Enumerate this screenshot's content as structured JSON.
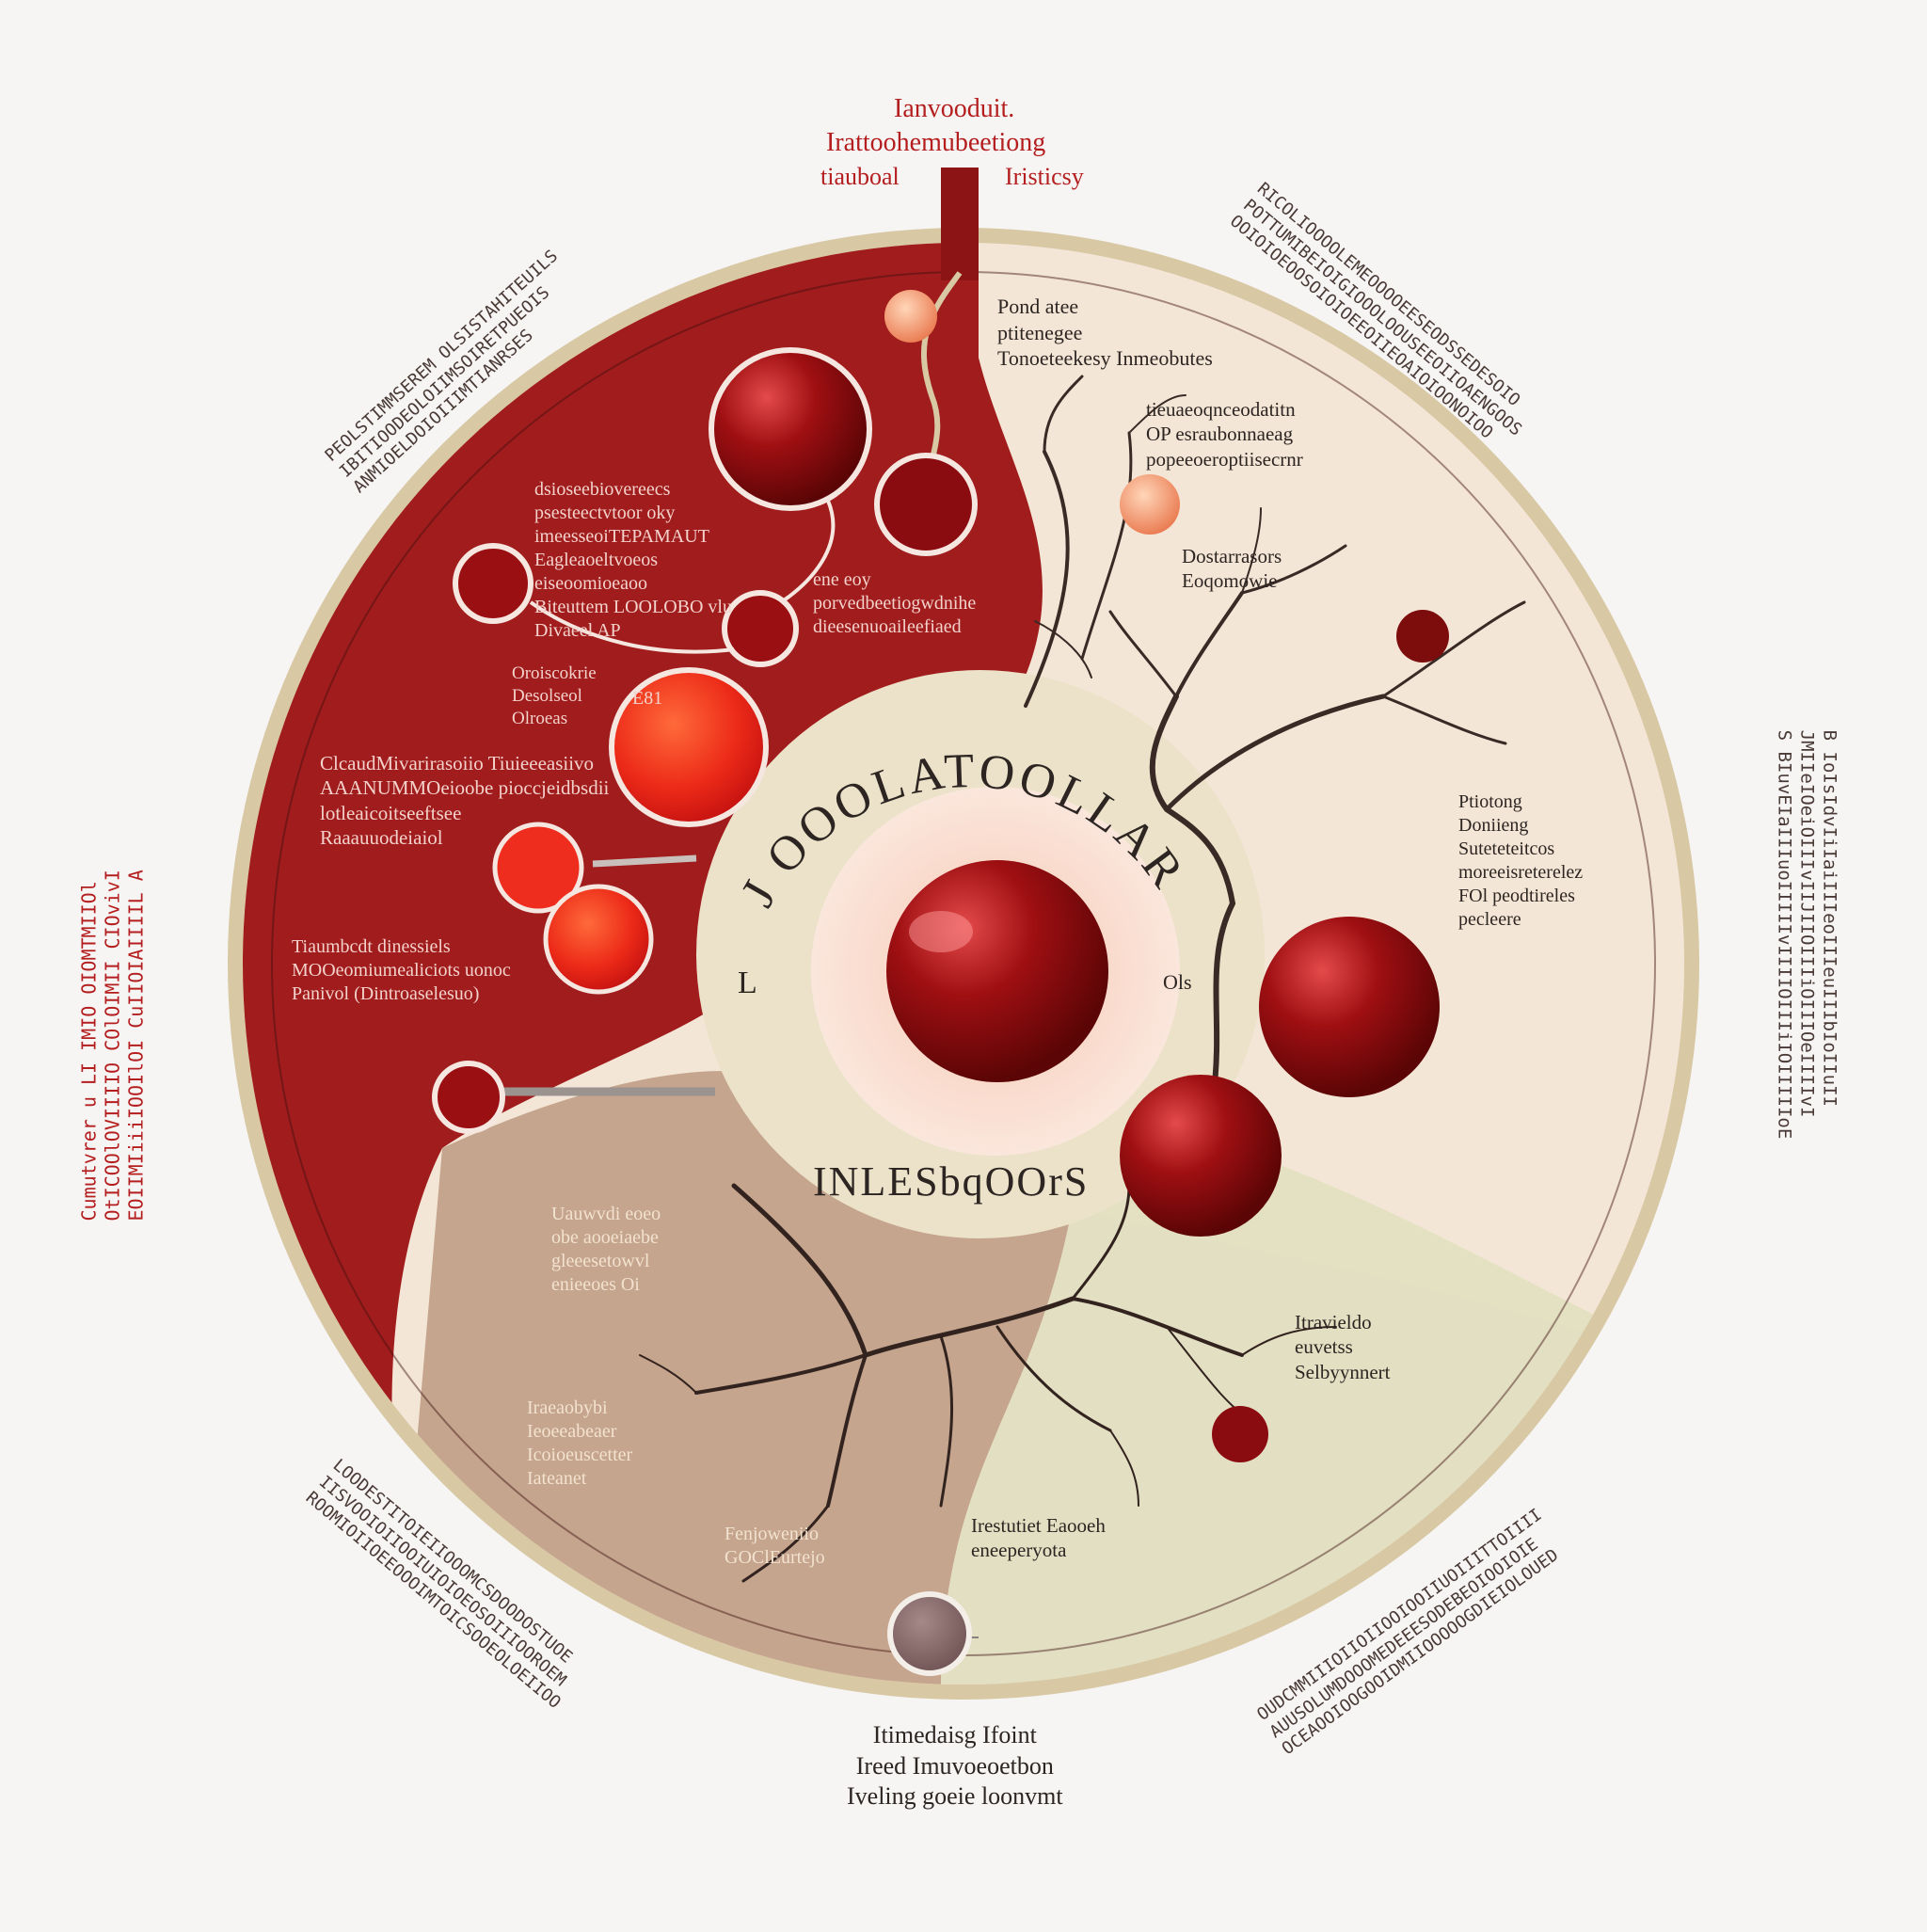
{
  "colors": {
    "background": "#f6f5f4",
    "crimson": "#a11c1c",
    "dark_red": "#7d0c0c",
    "bright_red": "#e8321f",
    "cream": "#f4e6d6",
    "beige_ring": "#d8c8a4",
    "brown_region": "#c5a58d",
    "sage": "#e6e2c6",
    "branch": "#3a2a26"
  },
  "top_caption": {
    "line1": "Ianvooduit.",
    "line2": "Irattoohemubeetiong",
    "line3_left": "tiauboal",
    "line3_right": "Iristicsy"
  },
  "center": {
    "arc_title": "EJ OOOLATOOLLAR A",
    "side_left": "L",
    "side_right": "Ols",
    "bottom_title": "INLESbqOOrS"
  },
  "labels": {
    "red_block_1": "dsioseebiovereecs\npsesteectvtoor oky\nimeesseoiTEPAMAUT\nEagleaoeltvoeos\neiseoomioeaoo\nBiteuttem LOOLOBO vlu\nDivaeel AP",
    "red_block_2": "Oroiscokrie\nDesolseol\nOlroeas",
    "red_block_2b": "E81",
    "red_block_3": "ClcaudMivarirasoiio Tiuieeeasiivo\nAAANUMMOeioobe pioccjeidbsdii\nlotleaicoitseeftsee\nRaaauuodeiaiol",
    "red_block_4": "Tiaumbcdt dinessiels\nMOOeomiumealiciots uonoc\nPanivol (Dintroaselesuo)",
    "red_mid": "ene eoy\nporvedbeetiogwdnihe\ndieesenuoaileefiaed",
    "cream_top": "Pond atee\nptitenegee\nTonoeteekesy  Inmeobutes",
    "cream_top2": "tieuaeoqnceodatitn\nOP esraubonnaeag\npopeeoeroptiisecrnr",
    "cream_mid": "Dostarrasors\nEoqomowie",
    "cream_right": "Ptiotong\nDoniieng\nSuteteteitcos\nmoreeisreterelez\nFOl peodtireles\npecleere",
    "brown_left": "Uauwvdi eoeo\nobe aooeiaebe\ngleeesetowvl\nenieeoes Oi",
    "brown_left2": "Iraeaobybi\nIeoeeabeaer\nIcoioeuscetter\nIateanet",
    "brown_bottom": "Fenjoweniio\nGOClEurtejo",
    "sage_bottom": "Irestutiet Eaooeh\neneeperyota",
    "sage_right": "Itravieldo\neuvetss\nSelbyynnert",
    "bottom_caption": "Itimedaisg Ifoint\nIreed  Imuvoeoetbon\nIveling goeie loonvmt",
    "outer_left": "Cumutvrer u LI IMIO OIOMTMIIOl\nOtICOOlOVIIIIO COlOIMII CIOvivI\nEOIIMIiiiIOOIlOI CuIIOIAIIIIL A",
    "outer_right": "B IoIsIdvIiIaiIIIeoIIIeuIIIbIoIIuII\nJMIIeIOeiOIIIvIIJIIOIIIiOIIIOeIIIIvI\nS BIuvEIaIIIuoIIIIIvIIIIOIIIiIOIIIIIoE",
    "outer_top_left": "PEOLSTIMMSEREM OLSISTAHITEUILS\nIBITIOODEOLOIIMSOIRETPUEOIS\nANMIOELDOIOIIIMTIANRSES",
    "outer_top_right": "RICOLIOOOOLEMEOOOOEESEODSSEDESOIO\nPOTTUMIBEIOIGIOOOLOOUSEEOIIOAENGOOS\nOOIOIOEOOSOIOIOEEOIIEOAIOIOONOIOO",
    "outer_bottom_left": "LOODESTITOIEIIOOOMCSDOODOSTUOE\nIISVOOIOIIOOIUIOIOEOSOIIIOOROEM\nROOMIOIIOEEOOOIMTOICSOOEOLOEIIOO",
    "outer_bottom_right": "OUDCMMIIIOIIOIIOOIOOIIUOIIITTOIIII\nAUUSOLUMDOOOMEDEEESODEBEOIOOIOIE\nOCEAOOIOOGOOIDMIIOOOOOGDIEIOLOUED"
  }
}
